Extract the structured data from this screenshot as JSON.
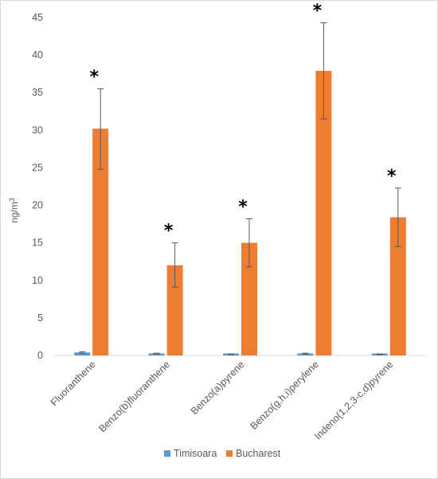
{
  "chart_data": {
    "type": "bar",
    "title": "",
    "xlabel": "",
    "ylabel": "ng/m",
    "ylabel_superscript": "3",
    "ylim": [
      0,
      45
    ],
    "yticks": [
      0,
      5,
      10,
      15,
      20,
      25,
      30,
      35,
      40,
      45
    ],
    "grid": false,
    "legend_position": "bottom",
    "categories": [
      "Fluoranthene",
      "Benzo(b)fluoranthene",
      "Benzo(a)pyrene",
      "Benzo(g,h,i)perylene",
      "Indeno(1,2,3-c,d)pyrene"
    ],
    "series": [
      {
        "name": "Timisoara",
        "color": "#5b9bd5",
        "values": [
          0.4,
          0.25,
          0.15,
          0.25,
          0.15
        ],
        "err_low": [
          0.3,
          0.2,
          0.1,
          0.2,
          0.1
        ],
        "err_high": [
          0.5,
          0.3,
          0.2,
          0.3,
          0.2
        ]
      },
      {
        "name": "Bucharest",
        "color": "#ed7d31",
        "values": [
          30.2,
          12.0,
          15.0,
          37.9,
          18.4
        ],
        "err_low": [
          24.8,
          9.1,
          11.8,
          31.5,
          14.5
        ],
        "err_high": [
          35.5,
          15.0,
          18.2,
          44.3,
          22.3
        ]
      }
    ],
    "annotations": [
      "*",
      "*",
      "*",
      "*",
      "*"
    ]
  }
}
